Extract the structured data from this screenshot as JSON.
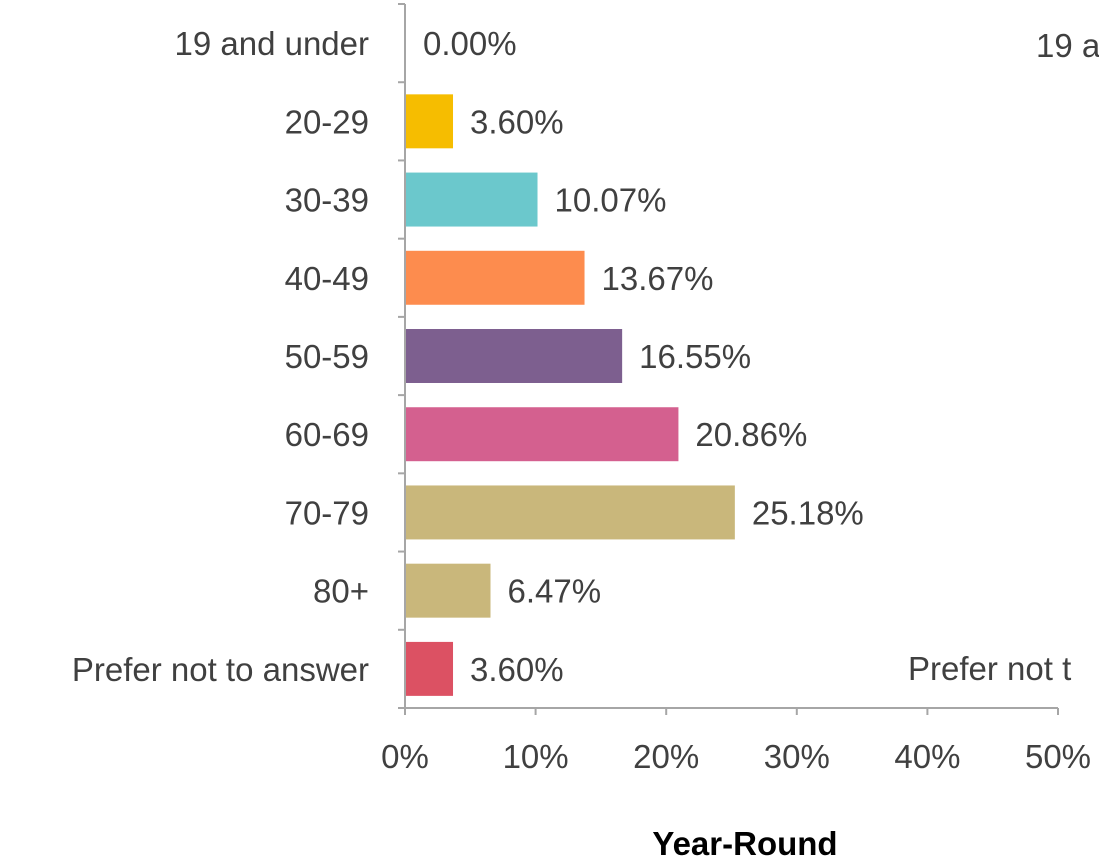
{
  "chart_data": {
    "type": "bar",
    "orientation": "horizontal",
    "title": "Year-Round",
    "categories": [
      "19 and under",
      "20-29",
      "30-39",
      "40-49",
      "50-59",
      "60-69",
      "70-79",
      "80+",
      "Prefer not to answer"
    ],
    "values": [
      0.0,
      3.6,
      10.07,
      13.67,
      16.55,
      20.86,
      25.18,
      6.47,
      3.6
    ],
    "data_labels": [
      "0.00%",
      "3.60%",
      "10.07%",
      "13.67%",
      "16.55%",
      "20.86%",
      "25.18%",
      "6.47%",
      "3.60%"
    ],
    "colors": [
      "#4e7ab5",
      "#f6bd00",
      "#6bc8cc",
      "#fd8c4e",
      "#7d5f8f",
      "#d4608f",
      "#c9b77b",
      "#c9b77b",
      "#dc5163"
    ],
    "xlim": [
      0,
      50
    ],
    "ticks": [
      "0%",
      "10%",
      "20%",
      "30%",
      "40%",
      "50%"
    ],
    "tick_values": [
      0,
      10,
      20,
      30,
      40,
      50
    ],
    "grid": false,
    "legend": "none"
  },
  "clipped_neighbor": {
    "top_text": "19 a",
    "bottom_text": "Prefer not t"
  }
}
